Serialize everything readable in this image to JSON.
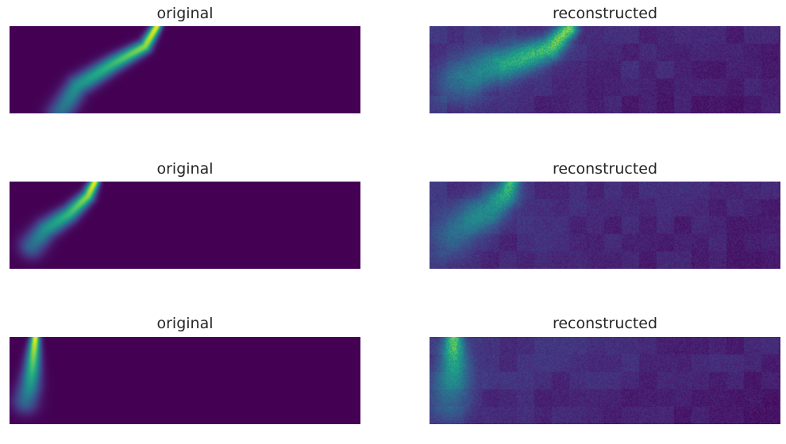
{
  "figure": {
    "colormap": "viridis",
    "background": "#ffffff",
    "rows": [
      {
        "original": {
          "title": "original",
          "curve": [
            [
              185,
              0
            ],
            [
              170,
              25
            ],
            [
              130,
              47
            ],
            [
              85,
              75
            ],
            [
              62,
              110
            ]
          ],
          "glow": 0.4
        },
        "reconstructed": {
          "title": "reconstructed",
          "curve": [
            [
              175,
              3
            ],
            [
              150,
              28
            ],
            [
              108,
              42
            ],
            [
              70,
              55
            ],
            [
              35,
              70
            ]
          ],
          "noise": 0.7
        }
      },
      {
        "original": {
          "title": "original",
          "curve": [
            [
              107,
              0
            ],
            [
              98,
              18
            ],
            [
              75,
              40
            ],
            [
              45,
              60
            ],
            [
              28,
              80
            ]
          ],
          "glow": 0.4
        },
        "reconstructed": {
          "title": "reconstructed",
          "curve": [
            [
              102,
              0
            ],
            [
              95,
              18
            ],
            [
              78,
              33
            ],
            [
              52,
              48
            ],
            [
              25,
              70
            ]
          ],
          "noise": 0.55
        }
      },
      {
        "original": {
          "title": "original",
          "curve": [
            [
              32,
              0
            ],
            [
              30,
              20
            ],
            [
              28,
              42
            ],
            [
              25,
              62
            ],
            [
              20,
              80
            ]
          ],
          "glow": 0.35
        },
        "reconstructed": {
          "title": "reconstructed",
          "curve": [
            [
              30,
              0
            ],
            [
              30,
              20
            ],
            [
              30,
              40
            ],
            [
              28,
              60
            ],
            [
              25,
              80
            ]
          ],
          "noise": 0.6
        }
      }
    ]
  }
}
